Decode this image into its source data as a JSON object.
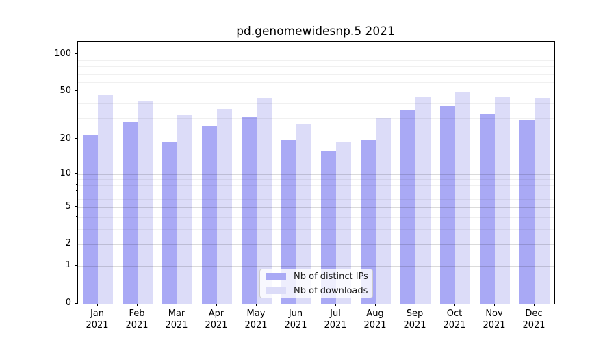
{
  "title": "pd.genomewidesnp.5 2021",
  "colors": {
    "distinct_ips": "#a9a9f5",
    "downloads": "#dcdcf8",
    "axis": "#000000",
    "grid_major": "rgba(0,0,0,0.14)",
    "grid_minor": "rgba(0,0,0,0.06)",
    "legend_border": "#cccccc"
  },
  "legend": {
    "items": [
      {
        "label": "Nb of distinct IPs",
        "series": "distinct_ips"
      },
      {
        "label": "Nb of downloads",
        "series": "downloads"
      }
    ]
  },
  "chart_data": {
    "type": "bar",
    "title": "pd.genomewidesnp.5 2021",
    "categories": [
      "Jan 2021",
      "Feb 2021",
      "Mar 2021",
      "Apr 2021",
      "May 2021",
      "Jun 2021",
      "Jul 2021",
      "Aug 2021",
      "Sep 2021",
      "Oct 2021",
      "Nov 2021",
      "Dec 2021"
    ],
    "x_tick_months": [
      "Jan",
      "Feb",
      "Mar",
      "Apr",
      "May",
      "Jun",
      "Jul",
      "Aug",
      "Sep",
      "Oct",
      "Nov",
      "Dec"
    ],
    "x_tick_year": "2021",
    "series": [
      {
        "name": "Nb of distinct IPs",
        "color_key": "distinct_ips",
        "values": [
          22,
          28,
          19,
          26,
          31,
          20,
          16,
          20,
          35,
          38,
          33,
          29
        ]
      },
      {
        "name": "Nb of downloads",
        "color_key": "downloads",
        "values": [
          47,
          42,
          32,
          36,
          44,
          27,
          19,
          30,
          45,
          50,
          45,
          44
        ]
      }
    ],
    "yscale": "log(v+1)",
    "ylim": [
      0,
      127.5
    ],
    "y_major_ticks": [
      100,
      50,
      20,
      10,
      5,
      2,
      1,
      0
    ],
    "y_minor_ticks": [
      90,
      80,
      70,
      60,
      40,
      30,
      9,
      8,
      7,
      6,
      4,
      3
    ],
    "xlabel": "",
    "ylabel": "",
    "grid": true,
    "legend_position": "lower center"
  }
}
